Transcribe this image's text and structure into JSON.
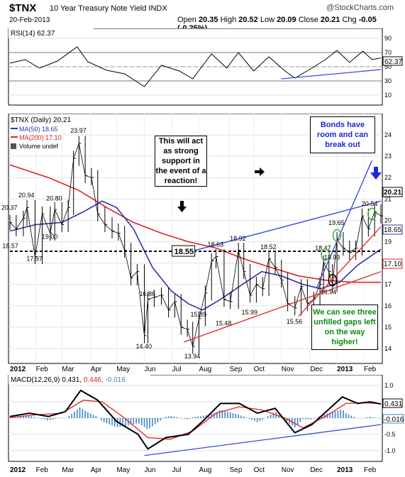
{
  "header": {
    "symbol": "$TNX",
    "name": "10 Year Treasury Note Yield INDX",
    "source": "@StockCharts.com",
    "date": "20-Feb-2013",
    "open_label": "Open",
    "open": "20.35",
    "high_label": "High",
    "high": "20.52",
    "low_label": "Low",
    "low": "20.09",
    "close_label": "Close",
    "close": "20.21",
    "chg_label": "Chg",
    "chg": "-0.05 (-0.25%)"
  },
  "rsi": {
    "label": "RSI(14) 62.37",
    "value_tag": "62.37",
    "ticks": [
      "90",
      "70",
      "50",
      "30",
      "10"
    ]
  },
  "price": {
    "legend_main": "$TNX (Daily) 20.21",
    "legend_ma50": "MA(50) 18.65",
    "legend_ma200": "MA(200) 17.10",
    "legend_volume": "Volume undef",
    "tag_close": "20.21",
    "tag_ma50": "18.65",
    "tag_ma200": "17.10",
    "ticks": [
      "24",
      "23",
      "22",
      "21",
      "20",
      "19",
      "18",
      "17",
      "16",
      "15",
      "14"
    ],
    "support_label": "18.55",
    "price_labels": [
      {
        "text": "20.37",
        "date": "2012-01-03",
        "price": 20.37
      },
      {
        "text": "18.57",
        "date": "2012-01-04",
        "price": 18.57
      },
      {
        "text": "20.94",
        "date": "2012-01-22",
        "price": 20.94
      },
      {
        "text": "17.97",
        "date": "2012-01-31",
        "price": 17.97
      },
      {
        "text": "19.00",
        "date": "2012-02-17",
        "price": 19.0
      },
      {
        "text": "20.80",
        "date": "2012-02-22",
        "price": 20.8
      },
      {
        "text": "23.97",
        "date": "2012-03-20",
        "price": 23.97
      },
      {
        "text": "16.86",
        "date": "2012-06-05",
        "price": 16.86
      },
      {
        "text": "14.40",
        "date": "2012-06-01",
        "price": 14.4
      },
      {
        "text": "13.94",
        "date": "2012-07-25",
        "price": 13.94
      },
      {
        "text": "15.89",
        "date": "2012-08-01",
        "price": 15.89
      },
      {
        "text": "18.63",
        "date": "2012-08-20",
        "price": 18.63
      },
      {
        "text": "15.48",
        "date": "2012-08-29",
        "price": 15.48
      },
      {
        "text": "18.92",
        "date": "2012-09-14",
        "price": 18.92
      },
      {
        "text": "15.99",
        "date": "2012-09-27",
        "price": 15.99
      },
      {
        "text": "18.52",
        "date": "2012-10-18",
        "price": 18.52
      },
      {
        "text": "15.56",
        "date": "2012-11-16",
        "price": 15.56
      },
      {
        "text": "18.47",
        "date": "2012-12-18",
        "price": 18.47
      },
      {
        "text": "18.03",
        "date": "2012-12-28",
        "price": 18.03
      },
      {
        "text": "16.94",
        "date": "2012-12-24",
        "price": 16.94
      },
      {
        "text": "19.65",
        "date": "2013-01-02",
        "price": 19.65
      },
      {
        "text": "20.54",
        "date": "2013-02-08",
        "price": 20.54
      }
    ]
  },
  "annotations": {
    "support": "This will act as strong support in the event of a reaction!",
    "bonds": "Bonds have room and can break out",
    "gaps": "We can see three unfilled gaps left on the way higher!"
  },
  "macd": {
    "label": "MACD(12,26,9) 0.431,",
    "signal_value": "0.446,",
    "hist_value": "-0.016",
    "tag_macd": "0.431",
    "tag_hist": "-0.016",
    "ticks": [
      "1.0",
      "0.5",
      "0.0",
      "-0.5",
      "-1.0"
    ]
  },
  "months": [
    "2012",
    "Feb",
    "Mar",
    "Apr",
    "May",
    "Jun",
    "Jul",
    "Aug",
    "Sep",
    "Oct",
    "Nov",
    "Dec",
    "2013",
    "Feb"
  ],
  "colors": {
    "price_bar": "#000000",
    "ma50": "#2b35a8",
    "ma200": "#e22020",
    "trend_blue": "#3a4fd8",
    "trend_red": "#e53030",
    "annot_blue": "#1a2ad0",
    "annot_green": "#0e8a10",
    "hist": "#3a86c8",
    "circle": "#3aa83a"
  },
  "chart_data": {
    "type": "line",
    "title": "$TNX 10 Year Treasury Note Yield INDX",
    "x_start": "2012-01-03",
    "x_end": "2013-02-20",
    "ylim": [
      13.5,
      24.8
    ],
    "series": [
      {
        "name": "$TNX (Daily)",
        "points": [
          [
            "2012-01-03",
            19.9
          ],
          [
            "2012-01-10",
            19.6
          ],
          [
            "2012-01-18",
            20.1
          ],
          [
            "2012-01-22",
            20.6
          ],
          [
            "2012-01-31",
            18.3
          ],
          [
            "2012-02-08",
            20.3
          ],
          [
            "2012-02-17",
            19.4
          ],
          [
            "2012-02-22",
            20.5
          ],
          [
            "2012-03-01",
            19.8
          ],
          [
            "2012-03-08",
            20.6
          ],
          [
            "2012-03-14",
            22.9
          ],
          [
            "2012-03-20",
            23.6
          ],
          [
            "2012-03-27",
            22.1
          ],
          [
            "2012-04-03",
            22.0
          ],
          [
            "2012-04-10",
            20.3
          ],
          [
            "2012-04-18",
            19.8
          ],
          [
            "2012-04-26",
            19.5
          ],
          [
            "2012-05-03",
            19.4
          ],
          [
            "2012-05-10",
            18.6
          ],
          [
            "2012-05-17",
            17.3
          ],
          [
            "2012-05-24",
            17.6
          ],
          [
            "2012-06-01",
            14.6
          ],
          [
            "2012-06-05",
            16.3
          ],
          [
            "2012-06-12",
            16.4
          ],
          [
            "2012-06-20",
            16.5
          ],
          [
            "2012-06-28",
            15.8
          ],
          [
            "2012-07-05",
            16.2
          ],
          [
            "2012-07-12",
            15.0
          ],
          [
            "2012-07-19",
            14.9
          ],
          [
            "2012-07-25",
            14.1
          ],
          [
            "2012-08-01",
            15.4
          ],
          [
            "2012-08-08",
            16.6
          ],
          [
            "2012-08-15",
            18.1
          ],
          [
            "2012-08-20",
            18.3
          ],
          [
            "2012-08-29",
            16.3
          ],
          [
            "2012-09-05",
            16.2
          ],
          [
            "2012-09-14",
            18.6
          ],
          [
            "2012-09-20",
            17.6
          ],
          [
            "2012-09-27",
            16.5
          ],
          [
            "2012-10-04",
            17.0
          ],
          [
            "2012-10-11",
            16.8
          ],
          [
            "2012-10-18",
            18.2
          ],
          [
            "2012-10-25",
            17.8
          ],
          [
            "2012-11-01",
            17.2
          ],
          [
            "2012-11-08",
            16.1
          ],
          [
            "2012-11-16",
            15.9
          ],
          [
            "2012-11-23",
            16.9
          ],
          [
            "2012-11-30",
            16.1
          ],
          [
            "2012-12-07",
            16.3
          ],
          [
            "2012-12-14",
            17.0
          ],
          [
            "2012-12-18",
            18.0
          ],
          [
            "2012-12-24",
            17.6
          ],
          [
            "2012-12-28",
            17.0
          ],
          [
            "2013-01-02",
            19.1
          ],
          [
            "2013-01-09",
            18.7
          ],
          [
            "2013-01-16",
            18.5
          ],
          [
            "2013-01-23",
            18.7
          ],
          [
            "2013-01-30",
            20.2
          ],
          [
            "2013-02-06",
            19.6
          ],
          [
            "2013-02-13",
            20.4
          ],
          [
            "2013-02-20",
            20.21
          ]
        ]
      },
      {
        "name": "MA(50)",
        "points": [
          [
            "2012-01-03",
            19.5
          ],
          [
            "2012-02-01",
            19.8
          ],
          [
            "2012-03-01",
            19.9
          ],
          [
            "2012-03-25",
            20.4
          ],
          [
            "2012-04-15",
            20.9
          ],
          [
            "2012-05-01",
            20.6
          ],
          [
            "2012-05-20",
            19.6
          ],
          [
            "2012-06-10",
            17.8
          ],
          [
            "2012-07-01",
            16.7
          ],
          [
            "2012-07-20",
            16.1
          ],
          [
            "2012-08-05",
            15.8
          ],
          [
            "2012-08-25",
            16.3
          ],
          [
            "2012-09-15",
            16.9
          ],
          [
            "2012-10-10",
            17.6
          ],
          [
            "2012-11-01",
            17.4
          ],
          [
            "2012-11-25",
            17.0
          ],
          [
            "2012-12-15",
            16.8
          ],
          [
            "2013-01-05",
            17.1
          ],
          [
            "2013-01-25",
            17.9
          ],
          [
            "2013-02-20",
            18.65
          ]
        ]
      },
      {
        "name": "MA(200)",
        "points": [
          [
            "2012-01-03",
            22.6
          ],
          [
            "2012-02-15",
            22.0
          ],
          [
            "2012-03-20",
            21.4
          ],
          [
            "2012-04-20",
            20.6
          ],
          [
            "2012-05-20",
            19.9
          ],
          [
            "2012-06-20",
            19.4
          ],
          [
            "2012-07-20",
            19.0
          ],
          [
            "2012-08-20",
            18.7
          ],
          [
            "2012-09-20",
            18.2
          ],
          [
            "2012-10-20",
            17.8
          ],
          [
            "2012-11-20",
            17.4
          ],
          [
            "2012-12-20",
            17.2
          ],
          [
            "2013-01-20",
            17.1
          ],
          [
            "2013-02-20",
            17.1
          ]
        ]
      },
      {
        "name": "Support",
        "points": [
          [
            "2012-01-03",
            18.55
          ],
          [
            "2013-02-20",
            18.55
          ]
        ]
      }
    ],
    "rsi": {
      "ylim": [
        0,
        100
      ],
      "points": [
        [
          "2012-01-03",
          55
        ],
        [
          "2012-01-20",
          60
        ],
        [
          "2012-02-05",
          48
        ],
        [
          "2012-02-25",
          58
        ],
        [
          "2012-03-18",
          78
        ],
        [
          "2012-03-30",
          57
        ],
        [
          "2012-04-20",
          45
        ],
        [
          "2012-05-10",
          40
        ],
        [
          "2012-06-01",
          22
        ],
        [
          "2012-06-20",
          52
        ],
        [
          "2012-07-10",
          44
        ],
        [
          "2012-07-25",
          33
        ],
        [
          "2012-08-15",
          68
        ],
        [
          "2012-09-01",
          48
        ],
        [
          "2012-09-14",
          70
        ],
        [
          "2012-10-01",
          44
        ],
        [
          "2012-10-18",
          64
        ],
        [
          "2012-11-05",
          44
        ],
        [
          "2012-11-16",
          34
        ],
        [
          "2012-12-05",
          48
        ],
        [
          "2012-12-20",
          60
        ],
        [
          "2013-01-02",
          73
        ],
        [
          "2013-01-16",
          56
        ],
        [
          "2013-01-31",
          72
        ],
        [
          "2013-02-10",
          60
        ],
        [
          "2013-02-20",
          62.37
        ]
      ]
    },
    "macd": {
      "ylim": [
        -1.2,
        1.2
      ],
      "macd_points": [
        [
          "2012-01-03",
          0.05
        ],
        [
          "2012-01-25",
          0.15
        ],
        [
          "2012-02-15",
          0.05
        ],
        [
          "2012-03-05",
          0.2
        ],
        [
          "2012-03-22",
          0.85
        ],
        [
          "2012-04-10",
          0.55
        ],
        [
          "2012-05-01",
          -0.1
        ],
        [
          "2012-05-25",
          -0.5
        ],
        [
          "2012-06-05",
          -0.95
        ],
        [
          "2012-06-25",
          -0.6
        ],
        [
          "2012-07-20",
          -0.5
        ],
        [
          "2012-08-05",
          -0.1
        ],
        [
          "2012-08-25",
          0.45
        ],
        [
          "2012-09-15",
          0.45
        ],
        [
          "2012-10-05",
          0.15
        ],
        [
          "2012-10-25",
          0.3
        ],
        [
          "2012-11-16",
          -0.45
        ],
        [
          "2012-12-05",
          -0.2
        ],
        [
          "2012-12-25",
          0.3
        ],
        [
          "2013-01-08",
          0.65
        ],
        [
          "2013-01-25",
          0.45
        ],
        [
          "2013-02-08",
          0.5
        ],
        [
          "2013-02-20",
          0.431
        ]
      ],
      "signal_points": [
        [
          "2012-01-03",
          0.02
        ],
        [
          "2012-02-01",
          0.1
        ],
        [
          "2012-03-01",
          0.15
        ],
        [
          "2012-03-25",
          0.55
        ],
        [
          "2012-04-15",
          0.5
        ],
        [
          "2012-05-10",
          0.0
        ],
        [
          "2012-06-05",
          -0.6
        ],
        [
          "2012-06-30",
          -0.65
        ],
        [
          "2012-07-25",
          -0.4
        ],
        [
          "2012-08-20",
          0.15
        ],
        [
          "2012-09-15",
          0.35
        ],
        [
          "2012-10-10",
          0.25
        ],
        [
          "2012-11-05",
          0.0
        ],
        [
          "2012-11-25",
          -0.3
        ],
        [
          "2012-12-20",
          0.05
        ],
        [
          "2013-01-12",
          0.45
        ],
        [
          "2013-02-01",
          0.47
        ],
        [
          "2013-02-20",
          0.446
        ]
      ]
    }
  }
}
